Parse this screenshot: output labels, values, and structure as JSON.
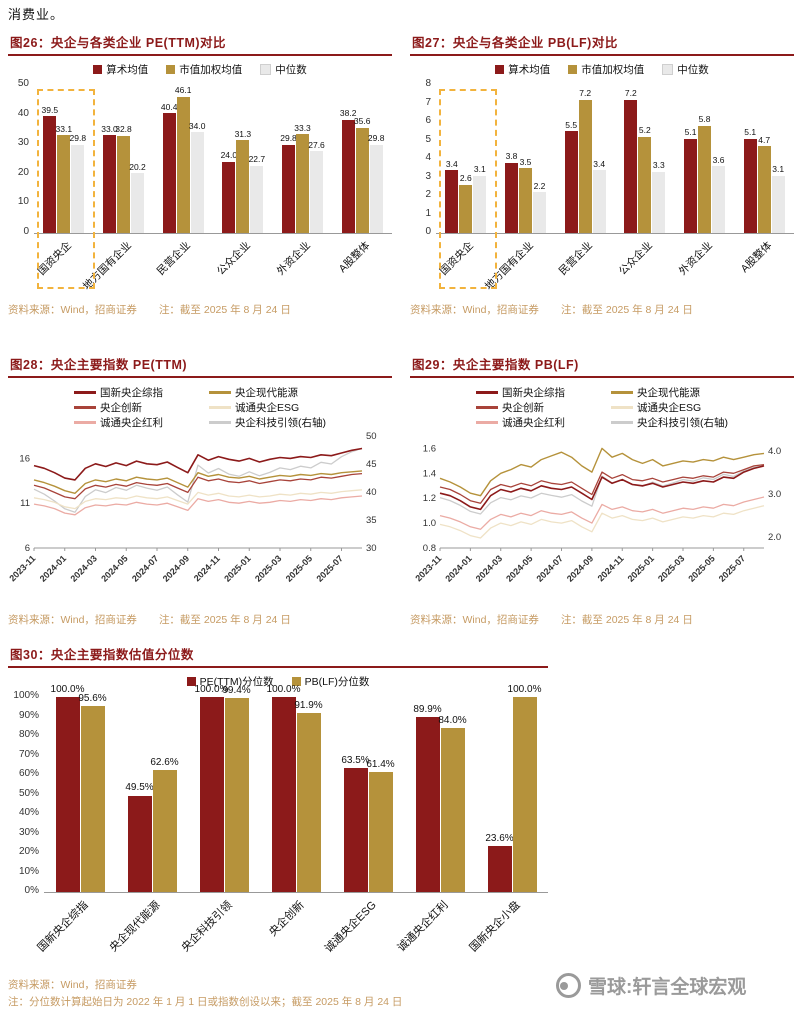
{
  "page": {
    "top_text": "消费业。",
    "watermark": {
      "text": "雪球:轩言全球宏观"
    }
  },
  "colors": {
    "maroon": "#8C1A1A",
    "red2": "#A8433A",
    "pink": "#EBABA4",
    "gold": "#B5923B",
    "cream": "#EFE2C6",
    "grayline": "#CCCCCC",
    "bargray": "#E9E9E9",
    "highlight": "#F2B33D",
    "tan": "#C69B63",
    "wm": "#9A9A9A"
  },
  "chart_data": [
    {
      "id": "fig26",
      "type": "bar",
      "title": "图26：央企与各类企业 PE(TTM)对比",
      "categories": [
        "国资央企",
        "地方国有企业",
        "民营企业",
        "公众企业",
        "外资企业",
        "A股整体"
      ],
      "series": [
        {
          "name": "算术均值",
          "color_key": "maroon",
          "values": [
            39.5,
            33.0,
            40.4,
            24.0,
            29.8,
            38.2
          ]
        },
        {
          "name": "市值加权均值",
          "color_key": "gold",
          "values": [
            33.1,
            32.8,
            46.1,
            31.3,
            33.3,
            35.6
          ]
        },
        {
          "name": "中位数",
          "color_key": "bargray",
          "values": [
            29.8,
            20.2,
            34.0,
            22.7,
            27.6,
            29.8
          ]
        }
      ],
      "ylim": [
        0,
        50
      ],
      "yticks": [
        [
          0,
          "0"
        ],
        [
          10,
          "10"
        ],
        [
          20,
          "20"
        ],
        [
          30,
          "30"
        ],
        [
          40,
          "40"
        ],
        [
          50,
          "50"
        ]
      ],
      "value_suffix": "",
      "highlight_index": 0,
      "source": "资料来源：Wind，招商证券",
      "note": "注：截至 2025 年 8 月 24 日"
    },
    {
      "id": "fig27",
      "type": "bar",
      "title": "图27：央企与各类企业 PB(LF)对比",
      "categories": [
        "国资央企",
        "地方国有企业",
        "民营企业",
        "公众企业",
        "外资企业",
        "A股整体"
      ],
      "series": [
        {
          "name": "算术均值",
          "color_key": "maroon",
          "values": [
            3.4,
            3.8,
            5.5,
            7.2,
            5.1,
            5.1
          ]
        },
        {
          "name": "市值加权均值",
          "color_key": "gold",
          "values": [
            2.6,
            3.5,
            7.2,
            5.2,
            5.8,
            4.7
          ]
        },
        {
          "name": "中位数",
          "color_key": "bargray",
          "values": [
            3.1,
            2.2,
            3.4,
            3.3,
            3.6,
            3.1
          ]
        }
      ],
      "ylim": [
        0,
        8
      ],
      "yticks": [
        [
          0,
          "0"
        ],
        [
          1,
          "1"
        ],
        [
          2,
          "2"
        ],
        [
          3,
          "3"
        ],
        [
          4,
          "4"
        ],
        [
          5,
          "5"
        ],
        [
          6,
          "6"
        ],
        [
          7,
          "7"
        ],
        [
          8,
          "8"
        ]
      ],
      "value_suffix": "",
      "highlight_index": 0,
      "source": "资料来源：Wind，招商证券",
      "note": "注：截至 2025 年 8 月 24 日"
    },
    {
      "id": "fig28",
      "type": "line",
      "title": "图28：央企主要指数 PE(TTM)",
      "x_labels": [
        "2023-11",
        "2024-01",
        "2024-03",
        "2024-05",
        "2024-07",
        "2024-09",
        "2024-11",
        "2025-01",
        "2025-03",
        "2025-05",
        "2025-07"
      ],
      "tick_step": 3,
      "left_range": [
        6,
        18.5
      ],
      "left_ticks": [
        [
          6,
          "6"
        ],
        [
          11,
          "11"
        ],
        [
          16,
          "16"
        ]
      ],
      "right_range": [
        30,
        50
      ],
      "right_ticks": [
        [
          30,
          "30"
        ],
        [
          35,
          "35"
        ],
        [
          40,
          "40"
        ],
        [
          45,
          "45"
        ],
        [
          50,
          "50"
        ]
      ],
      "series": [
        {
          "name": "国新央企综指",
          "color_key": "maroon",
          "axis": "left",
          "width": 1.6,
          "values": [
            15.2,
            14.9,
            14.4,
            13.8,
            13.6,
            14.9,
            15.4,
            15.1,
            15.5,
            15.2,
            15.7,
            15.4,
            15.3,
            15.6,
            15.0,
            14.4,
            16.4,
            15.8,
            16.2,
            15.9,
            15.7,
            16.0,
            15.6,
            15.9,
            16.1,
            16.0,
            16.2,
            16.1,
            16.4,
            16.3,
            16.6,
            16.9,
            17.1
          ]
        },
        {
          "name": "央企创新",
          "color_key": "red2",
          "axis": "left",
          "width": 1.3,
          "values": [
            13.0,
            12.7,
            12.2,
            11.7,
            11.5,
            12.6,
            13.0,
            12.8,
            13.1,
            12.9,
            13.3,
            13.1,
            13.0,
            13.2,
            12.7,
            12.2,
            13.9,
            13.5,
            13.7,
            13.4,
            13.3,
            13.5,
            13.2,
            13.4,
            13.6,
            13.5,
            13.7,
            13.6,
            13.9,
            13.8,
            14.0,
            14.2,
            14.3
          ]
        },
        {
          "name": "诚通央企红利",
          "color_key": "pink",
          "axis": "left",
          "width": 1.3,
          "values": [
            10.9,
            10.7,
            10.4,
            9.9,
            9.7,
            10.5,
            10.8,
            10.7,
            10.9,
            10.8,
            11.1,
            10.9,
            10.8,
            11.0,
            10.6,
            10.2,
            11.5,
            11.2,
            11.4,
            11.1,
            11.0,
            11.2,
            11.0,
            11.1,
            11.3,
            11.2,
            11.4,
            11.3,
            11.5,
            11.4,
            11.6,
            11.7,
            11.8
          ]
        },
        {
          "name": "央企现代能源",
          "color_key": "gold",
          "axis": "left",
          "width": 1.4,
          "values": [
            13.6,
            13.3,
            12.9,
            12.4,
            12.1,
            13.2,
            13.6,
            13.4,
            13.7,
            13.5,
            13.9,
            13.7,
            13.6,
            13.8,
            13.3,
            12.8,
            14.4,
            14.0,
            14.2,
            13.9,
            13.8,
            14.0,
            13.7,
            13.9,
            14.1,
            14.0,
            14.2,
            14.1,
            14.3,
            14.2,
            14.4,
            14.5,
            14.6
          ]
        },
        {
          "name": "诚通央企ESG",
          "color_key": "cream",
          "axis": "left",
          "width": 1.3,
          "values": [
            11.6,
            11.4,
            11.1,
            10.6,
            10.4,
            11.2,
            11.5,
            11.4,
            11.6,
            11.5,
            11.8,
            11.6,
            11.5,
            11.7,
            11.3,
            10.9,
            12.2,
            11.9,
            12.1,
            11.8,
            11.7,
            11.9,
            11.7,
            11.8,
            12.0,
            11.9,
            12.1,
            12.0,
            12.2,
            12.1,
            12.3,
            12.4,
            12.5
          ]
        },
        {
          "name": "央企科技引领(右轴)",
          "color_key": "grayline",
          "axis": "right",
          "width": 1.3,
          "values": [
            40.5,
            39.6,
            38.4,
            37.0,
            36.4,
            39.2,
            40.4,
            39.9,
            40.8,
            40.3,
            41.2,
            40.7,
            40.3,
            40.9,
            39.5,
            38.2,
            44.8,
            43.4,
            44.2,
            43.2,
            42.8,
            43.6,
            42.9,
            43.5,
            44.3,
            44.0,
            44.6,
            44.3,
            45.3,
            45.0,
            46.3,
            47.2,
            47.8
          ]
        }
      ],
      "source": "资料来源：Wind，招商证券",
      "note": "注：截至 2025 年 8 月 24 日"
    },
    {
      "id": "fig29",
      "type": "line",
      "title": "图29：央企主要指数 PB(LF)",
      "x_labels": [
        "2023-11",
        "2024-01",
        "2024-03",
        "2024-05",
        "2024-07",
        "2024-09",
        "2024-11",
        "2025-01",
        "2025-03",
        "2025-05",
        "2025-07"
      ],
      "tick_step": 3,
      "left_range": [
        0.8,
        1.7
      ],
      "left_ticks": [
        [
          0.8,
          "0.8"
        ],
        [
          1.0,
          "1.0"
        ],
        [
          1.2,
          "1.2"
        ],
        [
          1.4,
          "1.4"
        ],
        [
          1.6,
          "1.6"
        ]
      ],
      "right_range": [
        1.75,
        4.35
      ],
      "right_ticks": [
        [
          2.0,
          "2.0"
        ],
        [
          3.0,
          "3.0"
        ],
        [
          4.0,
          "4.0"
        ]
      ],
      "series": [
        {
          "name": "国新央企综指",
          "color_key": "maroon",
          "axis": "left",
          "width": 1.6,
          "values": [
            1.24,
            1.22,
            1.18,
            1.13,
            1.11,
            1.22,
            1.27,
            1.25,
            1.28,
            1.26,
            1.3,
            1.28,
            1.27,
            1.29,
            1.24,
            1.19,
            1.37,
            1.32,
            1.35,
            1.31,
            1.3,
            1.32,
            1.29,
            1.31,
            1.33,
            1.32,
            1.34,
            1.33,
            1.37,
            1.36,
            1.41,
            1.44,
            1.46
          ]
        },
        {
          "name": "央企创新",
          "color_key": "red2",
          "axis": "left",
          "width": 1.3,
          "values": [
            1.29,
            1.27,
            1.23,
            1.18,
            1.16,
            1.27,
            1.31,
            1.29,
            1.32,
            1.3,
            1.34,
            1.32,
            1.31,
            1.33,
            1.28,
            1.23,
            1.41,
            1.36,
            1.39,
            1.35,
            1.34,
            1.36,
            1.33,
            1.35,
            1.37,
            1.36,
            1.38,
            1.37,
            1.41,
            1.4,
            1.43,
            1.46,
            1.47
          ]
        },
        {
          "name": "诚通央企红利",
          "color_key": "pink",
          "axis": "left",
          "width": 1.3,
          "values": [
            1.06,
            1.04,
            1.01,
            0.97,
            0.95,
            1.03,
            1.07,
            1.05,
            1.08,
            1.06,
            1.1,
            1.08,
            1.07,
            1.09,
            1.04,
            1.0,
            1.15,
            1.11,
            1.13,
            1.1,
            1.09,
            1.11,
            1.08,
            1.1,
            1.12,
            1.11,
            1.13,
            1.12,
            1.15,
            1.14,
            1.17,
            1.19,
            1.21
          ]
        },
        {
          "name": "央企现代能源",
          "color_key": "gold",
          "axis": "left",
          "width": 1.4,
          "values": [
            1.36,
            1.33,
            1.29,
            1.24,
            1.22,
            1.34,
            1.4,
            1.43,
            1.47,
            1.45,
            1.51,
            1.54,
            1.57,
            1.53,
            1.46,
            1.41,
            1.6,
            1.53,
            1.56,
            1.51,
            1.48,
            1.51,
            1.46,
            1.48,
            1.5,
            1.49,
            1.51,
            1.5,
            1.53,
            1.51,
            1.53,
            1.55,
            1.56
          ]
        },
        {
          "name": "诚通央企ESG",
          "color_key": "cream",
          "axis": "left",
          "width": 1.3,
          "values": [
            0.99,
            0.97,
            0.94,
            0.9,
            0.88,
            0.96,
            1.0,
            0.98,
            1.01,
            0.99,
            1.03,
            1.01,
            1.0,
            1.02,
            0.97,
            0.93,
            1.08,
            1.04,
            1.06,
            1.03,
            1.02,
            1.04,
            1.01,
            1.03,
            1.05,
            1.04,
            1.06,
            1.05,
            1.08,
            1.07,
            1.1,
            1.12,
            1.14
          ]
        },
        {
          "name": "央企科技引领(右轴)",
          "color_key": "grayline",
          "axis": "right",
          "width": 1.3,
          "values": [
            2.92,
            2.85,
            2.74,
            2.6,
            2.54,
            2.8,
            2.92,
            2.87,
            2.96,
            2.91,
            3.02,
            2.97,
            2.93,
            2.99,
            2.84,
            2.72,
            3.42,
            3.26,
            3.34,
            3.22,
            3.18,
            3.28,
            3.19,
            3.26,
            3.34,
            3.3,
            3.38,
            3.34,
            3.46,
            3.41,
            3.54,
            3.62,
            3.68
          ]
        }
      ],
      "source": "资料来源：Wind，招商证券",
      "note": "注：截至 2025 年 8 月 24 日"
    },
    {
      "id": "fig30",
      "type": "bar",
      "title": "图30：央企主要指数估值分位数",
      "categories": [
        "国新央企综指",
        "央企现代能源",
        "央企科技引领",
        "央企创新",
        "诚通央企ESG",
        "诚通央企红利",
        "国新央企小盘"
      ],
      "series": [
        {
          "name": "PE(TTM)分位数",
          "color_key": "maroon",
          "values": [
            100.0,
            49.5,
            100.0,
            100.0,
            63.5,
            89.9,
            23.6
          ]
        },
        {
          "name": "PB(LF)分位数",
          "color_key": "gold",
          "values": [
            95.6,
            62.6,
            99.4,
            91.9,
            61.4,
            84.0,
            100.0
          ]
        }
      ],
      "ylim": [
        0,
        100
      ],
      "yticks": [
        [
          0,
          "0%"
        ],
        [
          10,
          "10%"
        ],
        [
          20,
          "20%"
        ],
        [
          30,
          "30%"
        ],
        [
          40,
          "40%"
        ],
        [
          50,
          "50%"
        ],
        [
          60,
          "60%"
        ],
        [
          70,
          "70%"
        ],
        [
          80,
          "80%"
        ],
        [
          90,
          "90%"
        ],
        [
          100,
          "100%"
        ]
      ],
      "value_suffix": "%",
      "highlight_index": null,
      "source": "资料来源：Wind，招商证券",
      "note": "注：分位数计算起始日为 2022 年 1 月 1 日或指数创设以来；截至 2025 年 8 月 24 日"
    }
  ]
}
